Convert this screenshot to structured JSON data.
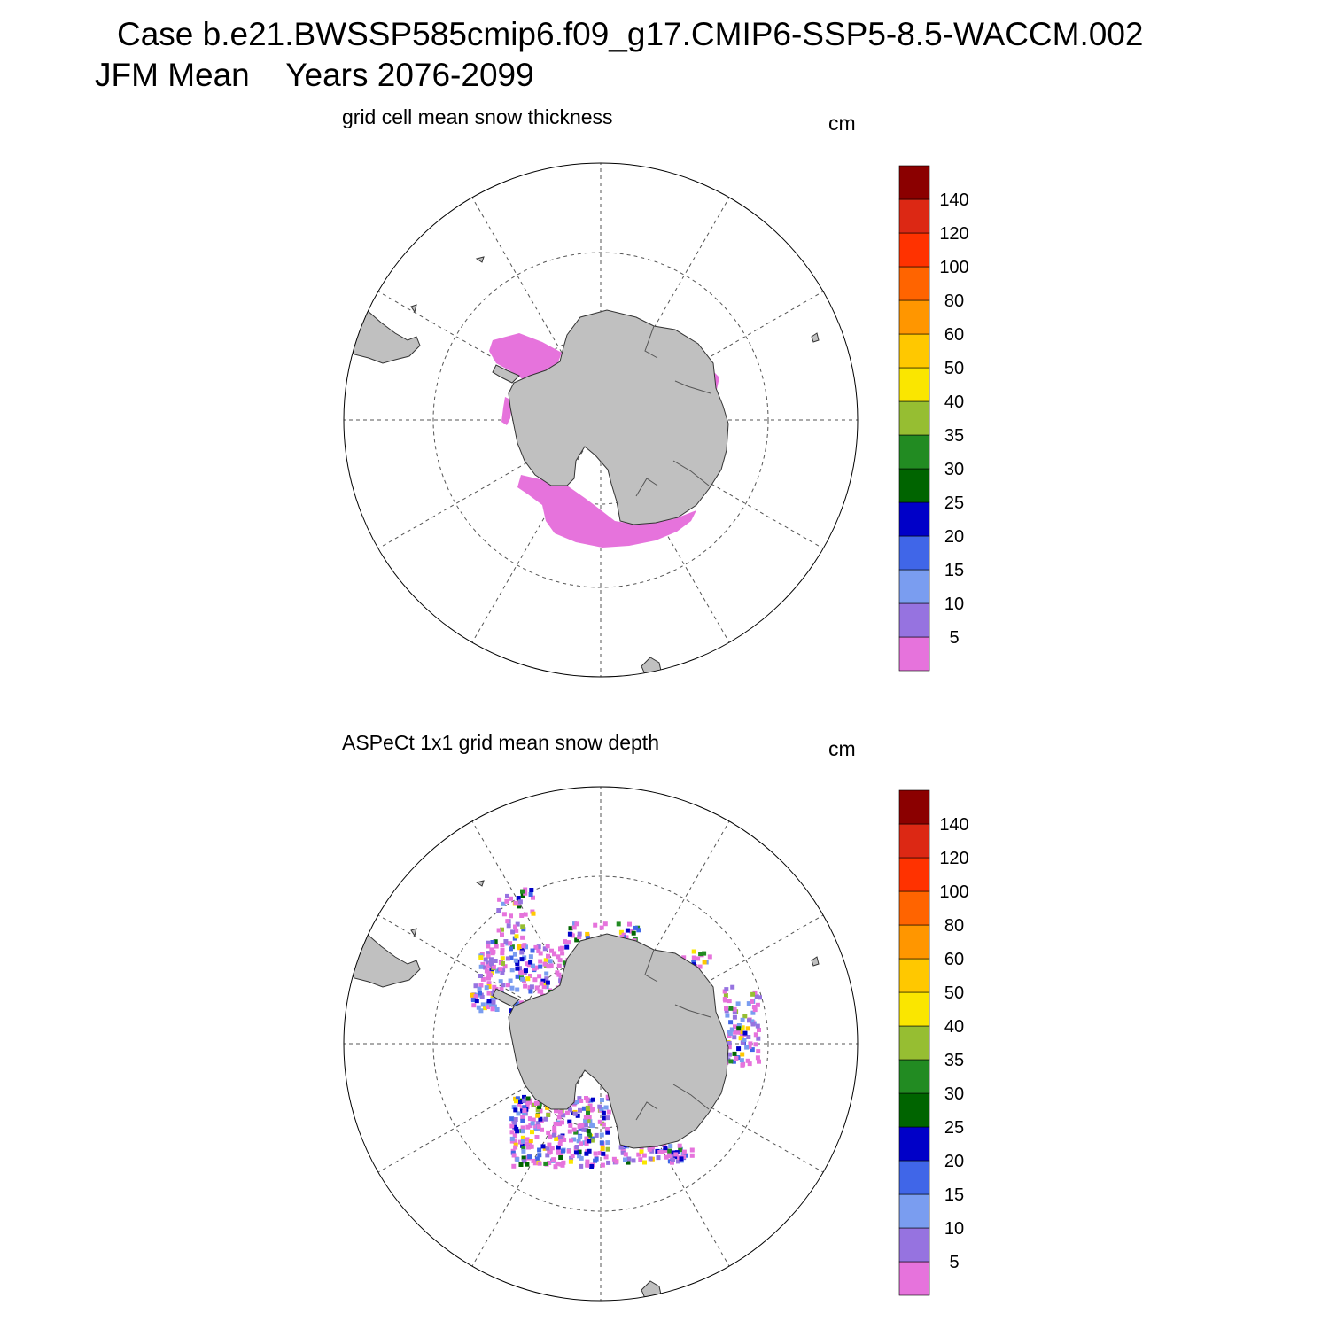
{
  "header": {
    "case_line": "Case b.e21.BWSSP585cmip6.f09_g17.CMIP6-SSP5-8.5-WACCM.002",
    "season_line": "JFM Mean    Years 2076-2099"
  },
  "colorbar": {
    "colors": [
      "#e673dc",
      "#9673e0",
      "#7a9df0",
      "#4066e8",
      "#0000c8",
      "#006400",
      "#228b22",
      "#96be32",
      "#fae600",
      "#ffc800",
      "#ff9600",
      "#ff6400",
      "#ff3200",
      "#dc2814",
      "#8b0000"
    ],
    "labels": [
      "5",
      "10",
      "15",
      "20",
      "25",
      "30",
      "35",
      "40",
      "50",
      "60",
      "80",
      "100",
      "120",
      "140"
    ]
  },
  "panels": [
    {
      "title": "grid cell mean snow thickness",
      "units": "cm"
    },
    {
      "title": "ASPeCt 1x1 grid mean snow depth",
      "units": "cm"
    }
  ],
  "map": {
    "land_color": "#c0c0c0",
    "projection": "south polar stereographic"
  }
}
